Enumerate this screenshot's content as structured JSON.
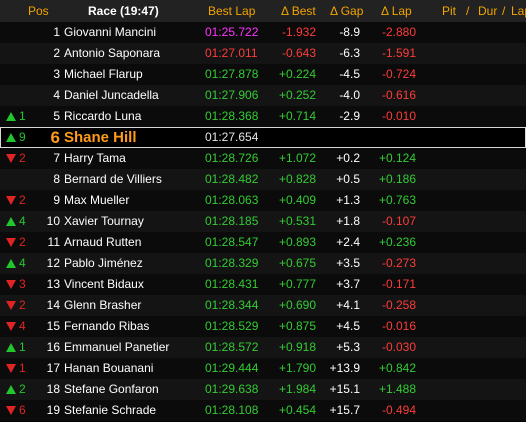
{
  "header": {
    "pos": "Pos",
    "race": "Race (19:47)",
    "best_lap": "Best Lap",
    "delta_best": "Δ Best",
    "delta_gap": "Δ Gap",
    "delta_lap": "Δ Lap",
    "pit": "Pit",
    "dur": "Dur",
    "lap": "Lap",
    "sep1": "/",
    "sep2": "/"
  },
  "colors": {
    "header_accent": "#f2a500",
    "fastest": "#ff33ff",
    "improved": "#33cc33",
    "worse": "#ff3b3b",
    "highlight": "#ff9a1a"
  },
  "rows": [
    {
      "arrow": "",
      "gain": "",
      "pos": "1",
      "name": "Giovanni Mancini",
      "best": "01:25.722",
      "best_color": "purple",
      "dbest": "-1.932",
      "gap": "-8.9",
      "dlap": "-2.880"
    },
    {
      "arrow": "",
      "gain": "",
      "pos": "2",
      "name": "Antonio Saponara",
      "best": "01:27.011",
      "best_color": "red",
      "dbest": "-0.643",
      "gap": "-6.3",
      "dlap": "-1.591"
    },
    {
      "arrow": "",
      "gain": "",
      "pos": "3",
      "name": "Michael Flarup",
      "best": "01:27.878",
      "best_color": "green",
      "dbest": "+0.224",
      "gap": "-4.5",
      "dlap": "-0.724"
    },
    {
      "arrow": "",
      "gain": "",
      "pos": "4",
      "name": "Daniel Juncadella",
      "best": "01:27.906",
      "best_color": "green",
      "dbest": "+0.252",
      "gap": "-4.0",
      "dlap": "-0.616"
    },
    {
      "arrow": "up",
      "gain": "1",
      "pos": "5",
      "name": "Riccardo Luna",
      "best": "01:28.368",
      "best_color": "green",
      "dbest": "+0.714",
      "gap": "-2.9",
      "dlap": "-0.010"
    },
    {
      "arrow": "up",
      "gain": "9",
      "pos": "6",
      "name": "Shane Hill",
      "best": "01:27.654",
      "best_color": "highlight",
      "dbest": "",
      "gap": "",
      "dlap": "",
      "highlight": true
    },
    {
      "arrow": "down",
      "gain": "2",
      "pos": "7",
      "name": "Harry Tama",
      "best": "01:28.726",
      "best_color": "green",
      "dbest": "+1.072",
      "gap": "+0.2",
      "dlap": "+0.124"
    },
    {
      "arrow": "",
      "gain": "",
      "pos": "8",
      "name": "Bernard de Villiers",
      "best": "01:28.482",
      "best_color": "green",
      "dbest": "+0.828",
      "gap": "+0.5",
      "dlap": "+0.186"
    },
    {
      "arrow": "down",
      "gain": "2",
      "pos": "9",
      "name": "Max Mueller",
      "best": "01:28.063",
      "best_color": "green",
      "dbest": "+0.409",
      "gap": "+1.3",
      "dlap": "+0.763"
    },
    {
      "arrow": "up",
      "gain": "4",
      "pos": "10",
      "name": "Xavier Tournay",
      "best": "01:28.185",
      "best_color": "green",
      "dbest": "+0.531",
      "gap": "+1.8",
      "dlap": "-0.107"
    },
    {
      "arrow": "down",
      "gain": "2",
      "pos": "11",
      "name": "Arnaud Rutten",
      "best": "01:28.547",
      "best_color": "green",
      "dbest": "+0.893",
      "gap": "+2.4",
      "dlap": "+0.236"
    },
    {
      "arrow": "up",
      "gain": "4",
      "pos": "12",
      "name": "Pablo Jiménez",
      "best": "01:28.329",
      "best_color": "green",
      "dbest": "+0.675",
      "gap": "+3.5",
      "dlap": "-0.273"
    },
    {
      "arrow": "down",
      "gain": "3",
      "pos": "13",
      "name": "Vincent Bidaux",
      "best": "01:28.431",
      "best_color": "green",
      "dbest": "+0.777",
      "gap": "+3.7",
      "dlap": "-0.171"
    },
    {
      "arrow": "down",
      "gain": "2",
      "pos": "14",
      "name": "Glenn Brasher",
      "best": "01:28.344",
      "best_color": "green",
      "dbest": "+0.690",
      "gap": "+4.1",
      "dlap": "-0.258"
    },
    {
      "arrow": "down",
      "gain": "4",
      "pos": "15",
      "name": "Fernando Ribas",
      "best": "01:28.529",
      "best_color": "green",
      "dbest": "+0.875",
      "gap": "+4.5",
      "dlap": "-0.016"
    },
    {
      "arrow": "up",
      "gain": "1",
      "pos": "16",
      "name": "Emmanuel Panetier",
      "best": "01:28.572",
      "best_color": "green",
      "dbest": "+0.918",
      "gap": "+5.3",
      "dlap": "-0.030"
    },
    {
      "arrow": "down",
      "gain": "1",
      "pos": "17",
      "name": "Hanan Bouanani",
      "best": "01:29.444",
      "best_color": "green",
      "dbest": "+1.790",
      "gap": "+13.9",
      "dlap": "+0.842"
    },
    {
      "arrow": "up",
      "gain": "2",
      "pos": "18",
      "name": "Stefane Gonfaron",
      "best": "01:29.638",
      "best_color": "green",
      "dbest": "+1.984",
      "gap": "+15.1",
      "dlap": "+1.488"
    },
    {
      "arrow": "down",
      "gain": "6",
      "pos": "19",
      "name": "Stefanie Schrade",
      "best": "01:28.108",
      "best_color": "green",
      "dbest": "+0.454",
      "gap": "+15.7",
      "dlap": "-0.494"
    }
  ]
}
